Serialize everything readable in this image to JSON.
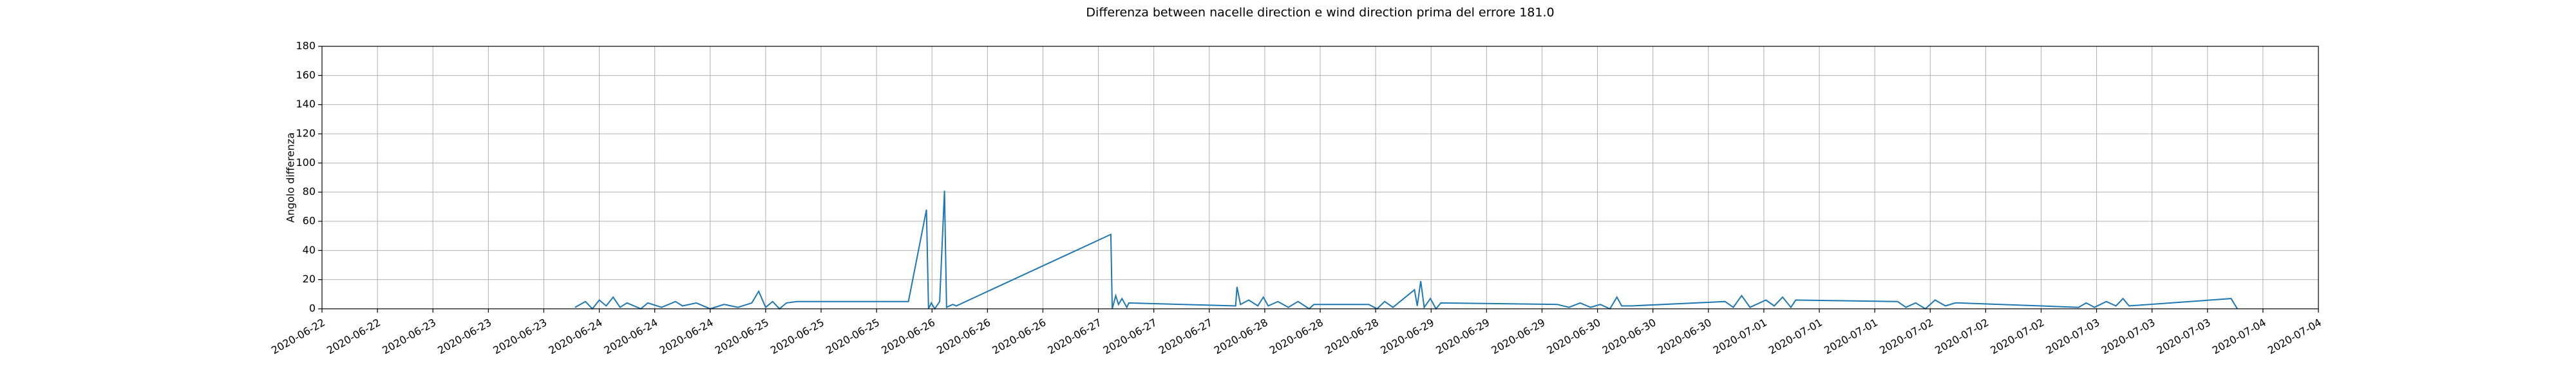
{
  "chart_data": {
    "type": "line",
    "title": "Differenza between nacelle direction e wind direction prima del errore 181.0",
    "ylabel": "Angolo differenza",
    "color": "#1f77b4",
    "grid": true,
    "xlim": [
      "2020-06-22T08:00",
      "2020-07-04T08:00"
    ],
    "ylim": [
      0,
      180
    ],
    "yticks": [
      0,
      20,
      40,
      60,
      80,
      100,
      120,
      140,
      160,
      180
    ],
    "xticks": [
      {
        "value": "2020-06-22T08:00",
        "label": "2020-06-22"
      },
      {
        "value": "2020-06-22T16:00",
        "label": "2020-06-22"
      },
      {
        "value": "2020-06-23T00:00",
        "label": "2020-06-23"
      },
      {
        "value": "2020-06-23T08:00",
        "label": "2020-06-23"
      },
      {
        "value": "2020-06-23T16:00",
        "label": "2020-06-23"
      },
      {
        "value": "2020-06-24T00:00",
        "label": "2020-06-24"
      },
      {
        "value": "2020-06-24T08:00",
        "label": "2020-06-24"
      },
      {
        "value": "2020-06-24T16:00",
        "label": "2020-06-24"
      },
      {
        "value": "2020-06-25T00:00",
        "label": "2020-06-25"
      },
      {
        "value": "2020-06-25T08:00",
        "label": "2020-06-25"
      },
      {
        "value": "2020-06-25T16:00",
        "label": "2020-06-25"
      },
      {
        "value": "2020-06-26T00:00",
        "label": "2020-06-26"
      },
      {
        "value": "2020-06-26T08:00",
        "label": "2020-06-26"
      },
      {
        "value": "2020-06-26T16:00",
        "label": "2020-06-26"
      },
      {
        "value": "2020-06-27T00:00",
        "label": "2020-06-27"
      },
      {
        "value": "2020-06-27T08:00",
        "label": "2020-06-27"
      },
      {
        "value": "2020-06-27T16:00",
        "label": "2020-06-27"
      },
      {
        "value": "2020-06-28T00:00",
        "label": "2020-06-28"
      },
      {
        "value": "2020-06-28T08:00",
        "label": "2020-06-28"
      },
      {
        "value": "2020-06-28T16:00",
        "label": "2020-06-28"
      },
      {
        "value": "2020-06-29T00:00",
        "label": "2020-06-29"
      },
      {
        "value": "2020-06-29T08:00",
        "label": "2020-06-29"
      },
      {
        "value": "2020-06-29T16:00",
        "label": "2020-06-29"
      },
      {
        "value": "2020-06-30T00:00",
        "label": "2020-06-30"
      },
      {
        "value": "2020-06-30T08:00",
        "label": "2020-06-30"
      },
      {
        "value": "2020-06-30T16:00",
        "label": "2020-06-30"
      },
      {
        "value": "2020-07-01T00:00",
        "label": "2020-07-01"
      },
      {
        "value": "2020-07-01T08:00",
        "label": "2020-07-01"
      },
      {
        "value": "2020-07-01T16:00",
        "label": "2020-07-01"
      },
      {
        "value": "2020-07-02T00:00",
        "label": "2020-07-02"
      },
      {
        "value": "2020-07-02T08:00",
        "label": "2020-07-02"
      },
      {
        "value": "2020-07-02T16:00",
        "label": "2020-07-02"
      },
      {
        "value": "2020-07-03T00:00",
        "label": "2020-07-03"
      },
      {
        "value": "2020-07-03T08:00",
        "label": "2020-07-03"
      },
      {
        "value": "2020-07-03T16:00",
        "label": "2020-07-03"
      },
      {
        "value": "2020-07-04T00:00",
        "label": "2020-07-04"
      },
      {
        "value": "2020-07-04T08:00",
        "label": "2020-07-04"
      }
    ],
    "x": [
      "2020-06-23T20:30",
      "2020-06-23T22:00",
      "2020-06-23T23:00",
      "2020-06-24T00:00",
      "2020-06-24T01:00",
      "2020-06-24T02:00",
      "2020-06-24T03:00",
      "2020-06-24T04:00",
      "2020-06-24T06:00",
      "2020-06-24T07:00",
      "2020-06-24T09:00",
      "2020-06-24T11:00",
      "2020-06-24T12:00",
      "2020-06-24T14:00",
      "2020-06-24T16:00",
      "2020-06-24T18:00",
      "2020-06-24T20:00",
      "2020-06-24T22:00",
      "2020-06-24T23:00",
      "2020-06-25T00:00",
      "2020-06-25T01:00",
      "2020-06-25T02:00",
      "2020-06-25T03:00",
      "2020-06-25T04:30",
      "2020-06-25T20:36",
      "2020-06-25T23:12",
      "2020-06-25T23:30",
      "2020-06-25T23:54",
      "2020-06-26T00:24",
      "2020-06-26T01:06",
      "2020-06-26T01:48",
      "2020-06-26T02:06",
      "2020-06-26T03:00",
      "2020-06-26T03:30",
      "2020-06-27T01:48",
      "2020-06-27T02:00",
      "2020-06-27T02:30",
      "2020-06-27T02:54",
      "2020-06-27T03:24",
      "2020-06-27T04:06",
      "2020-06-27T04:24",
      "2020-06-27T19:48",
      "2020-06-27T20:00",
      "2020-06-27T20:30",
      "2020-06-27T21:42",
      "2020-06-27T23:00",
      "2020-06-27T23:48",
      "2020-06-28T00:30",
      "2020-06-28T01:54",
      "2020-06-28T03:24",
      "2020-06-28T04:48",
      "2020-06-28T06:24",
      "2020-06-28T07:06",
      "2020-06-28T15:00",
      "2020-06-28T16:12",
      "2020-06-28T17:18",
      "2020-06-28T18:30",
      "2020-06-28T21:36",
      "2020-06-28T22:00",
      "2020-06-28T22:30",
      "2020-06-28T23:00",
      "2020-06-28T23:54",
      "2020-06-29T00:42",
      "2020-06-29T01:24",
      "2020-06-29T18:12",
      "2020-06-29T19:54",
      "2020-06-29T21:30",
      "2020-06-29T23:00",
      "2020-06-30T00:24",
      "2020-06-30T01:48",
      "2020-06-30T02:48",
      "2020-06-30T03:30",
      "2020-06-30T04:54",
      "2020-06-30T18:24",
      "2020-06-30T19:36",
      "2020-06-30T20:48",
      "2020-06-30T22:00",
      "2020-07-01T00:18",
      "2020-07-01T01:30",
      "2020-07-01T02:42",
      "2020-07-01T03:54",
      "2020-07-01T04:36",
      "2020-07-01T19:18",
      "2020-07-01T20:30",
      "2020-07-01T21:54",
      "2020-07-01T23:18",
      "2020-07-02T00:42",
      "2020-07-02T02:12",
      "2020-07-02T03:36",
      "2020-07-02T04:18",
      "2020-07-02T21:24",
      "2020-07-02T22:30",
      "2020-07-02T23:42",
      "2020-07-03T01:24",
      "2020-07-03T02:48",
      "2020-07-03T03:48",
      "2020-07-03T04:42",
      "2020-07-03T19:24",
      "2020-07-03T20:18"
    ],
    "values": [
      1,
      5,
      0,
      6,
      2,
      8,
      1,
      4,
      0,
      4,
      1,
      5,
      2,
      4,
      0,
      3,
      1,
      4,
      12,
      1,
      5,
      0,
      4,
      5,
      5,
      68,
      0,
      4,
      0,
      5,
      81,
      1,
      3,
      2,
      51,
      0,
      9,
      3,
      7,
      1,
      4,
      2,
      15,
      3,
      6,
      2,
      8,
      2,
      5,
      1,
      5,
      0,
      3,
      3,
      0,
      5,
      1,
      13,
      2,
      19,
      1,
      7,
      0,
      4,
      3,
      1,
      4,
      1,
      3,
      0,
      8,
      2,
      2,
      5,
      1,
      9,
      1,
      6,
      2,
      8,
      1,
      6,
      5,
      1,
      4,
      0,
      6,
      2,
      4,
      4,
      1,
      4,
      1,
      5,
      2,
      7,
      2,
      7,
      0
    ]
  }
}
